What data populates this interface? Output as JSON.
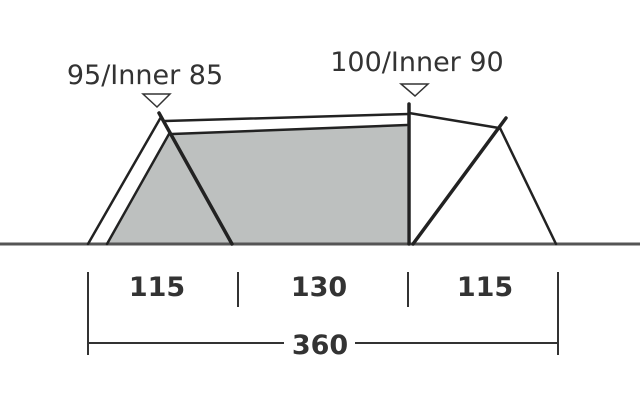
{
  "heights": {
    "front": "95/Inner 85",
    "rear": "100/Inner 90"
  },
  "lengths": {
    "segments": [
      "115",
      "130",
      "115"
    ],
    "total": "360"
  },
  "colors": {
    "inner_tent_fill": "#bdc0bf",
    "lines": "#222222",
    "ground": "#555555",
    "text": "#333333"
  }
}
